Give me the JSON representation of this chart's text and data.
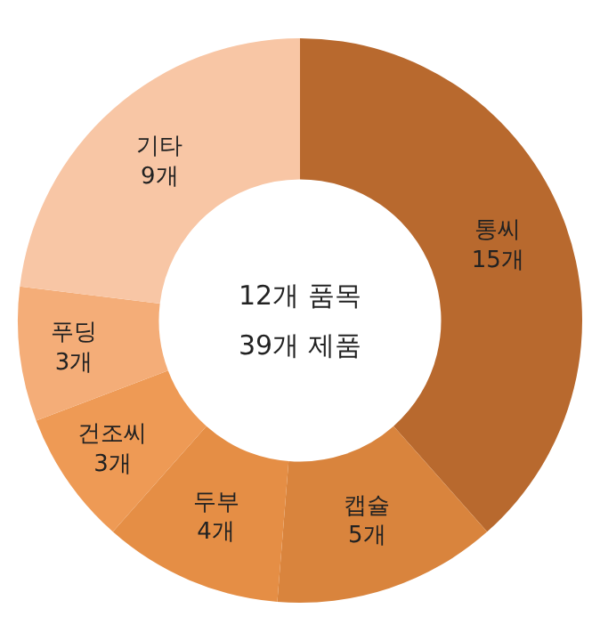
{
  "chart_data": {
    "type": "donut",
    "categories": [
      "통씨",
      "캡슐",
      "두부",
      "건조씨",
      "푸딩",
      "기타"
    ],
    "values": [
      15,
      5,
      4,
      3,
      3,
      9
    ],
    "value_labels": [
      "15개",
      "5개",
      "4개",
      "3개",
      "3개",
      "9개"
    ],
    "colors": [
      "#b8692e",
      "#d9843d",
      "#e58e45",
      "#ee9a55",
      "#f4ad78",
      "#f8c6a5"
    ],
    "annotations": [
      "12개 품목",
      "39개 제품"
    ],
    "legend": false
  }
}
